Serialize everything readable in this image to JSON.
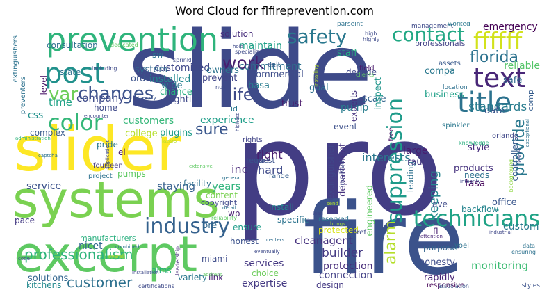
{
  "title": "Word Cloud for flfireprevention.com",
  "chart_data": {
    "type": "wordcloud",
    "title": "Word Cloud for flfireprevention.com",
    "words": [
      {
        "text": "slide",
        "weight": 1.0,
        "color": "#3e4a89"
      },
      {
        "text": "pro",
        "weight": 0.98,
        "color": "#433d84"
      },
      {
        "text": "fire",
        "weight": 0.86,
        "color": "#3b528b"
      },
      {
        "text": "slider",
        "weight": 0.62,
        "color": "#fde725"
      },
      {
        "text": "systems",
        "weight": 0.55,
        "color": "#7ad151"
      },
      {
        "text": "excerpt",
        "weight": 0.53,
        "color": "#5ec962"
      },
      {
        "text": "prevention",
        "weight": 0.36,
        "color": "#2fb47c"
      },
      {
        "text": "post",
        "weight": 0.3,
        "color": "#21918c"
      },
      {
        "text": "title",
        "weight": 0.3,
        "color": "#2c728e"
      },
      {
        "text": "text",
        "weight": 0.27,
        "color": "#482677"
      },
      {
        "text": "color",
        "weight": 0.26,
        "color": "#35b779"
      },
      {
        "text": "ffffff",
        "weight": 0.25,
        "color": "#d2e21b"
      },
      {
        "text": "technicians",
        "weight": 0.24,
        "color": "#20a386"
      },
      {
        "text": "industry",
        "weight": 0.23,
        "color": "#34618d"
      },
      {
        "text": "suppression",
        "weight": 0.23,
        "color": "#1e9b8a"
      },
      {
        "text": "safety",
        "weight": 0.2,
        "color": "#2a788e"
      },
      {
        "text": "contact",
        "weight": 0.2,
        "color": "#22a884"
      },
      {
        "text": "var",
        "weight": 0.19,
        "color": "#6ece58"
      },
      {
        "text": "changes",
        "weight": 0.19,
        "color": "#3b528b"
      },
      {
        "text": "work",
        "weight": 0.18,
        "color": "#481f70"
      },
      {
        "text": "florida",
        "weight": 0.18,
        "color": "#2c728e"
      },
      {
        "text": "provide",
        "weight": 0.18,
        "color": "#2a788e"
      },
      {
        "text": "life",
        "weight": 0.17,
        "color": "#3e4a89"
      },
      {
        "text": "customer",
        "weight": 0.15,
        "color": "#2d708e"
      },
      {
        "text": "alarm",
        "weight": 0.15,
        "color": "#b5de2b"
      },
      {
        "text": "professionalism",
        "weight": 0.14,
        "color": "#2fb47c"
      },
      {
        "text": "sure",
        "weight": 0.14,
        "color": "#39568c"
      },
      {
        "text": "builder",
        "weight": 0.12,
        "color": "#443983"
      },
      {
        "text": "cleanagent",
        "weight": 0.1,
        "color": "#46327e"
      },
      {
        "text": "keeping",
        "weight": 0.1,
        "color": "#25858e"
      },
      {
        "text": "standards",
        "weight": 0.1,
        "color": "#287c8e"
      },
      {
        "text": "interests",
        "weight": 0.09,
        "color": "#2a788e"
      },
      {
        "text": "inc",
        "weight": 0.09,
        "color": "#482878"
      },
      {
        "text": "hard",
        "weight": 0.09,
        "color": "#3e4a89"
      },
      {
        "text": "right",
        "weight": 0.09,
        "color": "#481f70"
      },
      {
        "text": "years",
        "weight": 0.09,
        "color": "#2fb47c"
      },
      {
        "text": "staying",
        "weight": 0.09,
        "color": "#355f8d"
      },
      {
        "text": "nicet",
        "weight": 0.09,
        "color": "#31688e"
      },
      {
        "text": "monitoring",
        "weight": 0.09,
        "color": "#3dbc74"
      },
      {
        "text": "expertise",
        "weight": 0.08,
        "color": "#443983"
      },
      {
        "text": "time",
        "weight": 0.08,
        "color": "#20a386"
      },
      {
        "text": "company",
        "weight": 0.08,
        "color": "#3e4a89"
      },
      {
        "text": "css",
        "weight": 0.08,
        "color": "#21918c"
      },
      {
        "text": "experience",
        "weight": 0.08,
        "color": "#1f9e89"
      },
      {
        "text": "customers",
        "weight": 0.08,
        "color": "#35b779"
      },
      {
        "text": "commitment",
        "weight": 0.08,
        "color": "#2d708e"
      },
      {
        "text": "maintain",
        "weight": 0.08,
        "color": "#1fa188"
      },
      {
        "text": "fasa",
        "weight": 0.08,
        "color": "#46085c"
      },
      {
        "text": "office",
        "weight": 0.08,
        "color": "#39568c"
      },
      {
        "text": "emergency",
        "weight": 0.07,
        "color": "#440154"
      },
      {
        "text": "service",
        "weight": 0.07,
        "color": "#3b528b"
      },
      {
        "text": "customized",
        "weight": 0.07,
        "color": "#3f4889"
      },
      {
        "text": "installed",
        "weight": 0.07,
        "color": "#23898e"
      },
      {
        "text": "system",
        "weight": 0.07,
        "color": "#31688e"
      },
      {
        "text": "reliable",
        "weight": 0.07,
        "color": "#54c568"
      },
      {
        "text": "honesty",
        "weight": 0.07,
        "color": "#3e4c8a"
      },
      {
        "text": "rapidly",
        "weight": 0.07,
        "color": "#482475"
      },
      {
        "text": "connection",
        "weight": 0.07,
        "color": "#424086"
      },
      {
        "text": "protection",
        "weight": 0.07,
        "color": "#472c7a"
      },
      {
        "text": "services",
        "weight": 0.07,
        "color": "#453882"
      },
      {
        "text": "solutions",
        "weight": 0.07,
        "color": "#32658e"
      },
      {
        "text": "engineered",
        "weight": 0.07,
        "color": "#5ec962"
      },
      {
        "text": "extinguisher",
        "weight": 0.07,
        "color": "#404688"
      },
      {
        "text": "department",
        "weight": 0.07,
        "color": "#46337f"
      },
      {
        "text": "pump",
        "weight": 0.07,
        "color": "#287d8e"
      },
      {
        "text": "goal",
        "weight": 0.07,
        "color": "#2d708e"
      },
      {
        "text": "trust",
        "weight": 0.07,
        "color": "#48186a"
      },
      {
        "text": "owners",
        "weight": 0.07,
        "color": "#2c738e"
      },
      {
        "text": "lighting",
        "weight": 0.07,
        "color": "#3e4989"
      },
      {
        "text": "wide",
        "weight": 0.07,
        "color": "#2a788e"
      },
      {
        "text": "plugins",
        "weight": 0.06,
        "color": "#1e9c89"
      },
      {
        "text": "college",
        "weight": 0.06,
        "color": "#b5de2b"
      },
      {
        "text": "custom",
        "weight": 0.07,
        "color": "#2a788e"
      },
      {
        "text": "backflow",
        "weight": 0.06,
        "color": "#25848e"
      },
      {
        "text": "style",
        "weight": 0.06,
        "color": "#472f7d"
      },
      {
        "text": "products",
        "weight": 0.06,
        "color": "#46327e"
      },
      {
        "text": "needs",
        "weight": 0.06,
        "color": "#2c718e"
      },
      {
        "text": "large",
        "weight": 0.06,
        "color": "#481d6f"
      },
      {
        "text": "raul",
        "weight": 0.06,
        "color": "#443a83"
      },
      {
        "text": "compa",
        "weight": 0.06,
        "color": "#2a788e"
      },
      {
        "text": "safe",
        "weight": 0.06,
        "color": "#31688e"
      },
      {
        "text": "business",
        "weight": 0.06,
        "color": "#1fa088"
      },
      {
        "text": "date",
        "weight": 0.06,
        "color": "#39558c"
      },
      {
        "text": "scale",
        "weight": 0.06,
        "color": "#32658e"
      },
      {
        "text": "event",
        "weight": 0.05,
        "color": "#3c4f8a"
      },
      {
        "text": "decade",
        "weight": 0.05,
        "color": "#3f4788"
      },
      {
        "text": "experts",
        "weight": 0.05,
        "color": "#46337f"
      },
      {
        "text": "inspect",
        "weight": 0.05,
        "color": "#1f958b"
      },
      {
        "text": "staff",
        "weight": 0.06,
        "color": "#26ad81"
      },
      {
        "text": "commercial",
        "weight": 0.06,
        "color": "#3d4d8a"
      },
      {
        "text": "prevent",
        "weight": 0.06,
        "color": "#404588"
      },
      {
        "text": "basa",
        "weight": 0.05,
        "color": "#287c8e"
      },
      {
        "text": "solution",
        "weight": 0.05,
        "color": "#472d7b"
      },
      {
        "text": "order",
        "weight": 0.05,
        "color": "#3b528b"
      },
      {
        "text": "chance",
        "weight": 0.06,
        "color": "#28ae80"
      },
      {
        "text": "home",
        "weight": 0.05,
        "color": "#3e4989"
      },
      {
        "text": "state",
        "weight": 0.05,
        "color": "#2c728e"
      },
      {
        "text": "level",
        "weight": 0.05,
        "color": "#481467"
      },
      {
        "text": "consultation",
        "weight": 0.05,
        "color": "#2e6f8e"
      },
      {
        "text": "complex",
        "weight": 0.05,
        "color": "#38598c"
      },
      {
        "text": "pride",
        "weight": 0.05,
        "color": "#2a788e"
      },
      {
        "text": "pumps",
        "weight": 0.05,
        "color": "#5ec962"
      },
      {
        "text": "project",
        "weight": 0.05,
        "color": "#2c718e"
      },
      {
        "text": "fourteen",
        "weight": 0.05,
        "color": "#443983"
      },
      {
        "text": "el",
        "weight": 0.05,
        "color": "#481a6c"
      },
      {
        "text": "facility",
        "weight": 0.05,
        "color": "#2d708e"
      },
      {
        "text": "content",
        "weight": 0.05,
        "color": "#7ad151"
      },
      {
        "text": "copyright",
        "weight": 0.05,
        "color": "#3f4889"
      },
      {
        "text": "pre",
        "weight": 0.05,
        "color": "#31688e"
      },
      {
        "text": "wp",
        "weight": 0.05,
        "color": "#481f70"
      },
      {
        "text": "install",
        "weight": 0.05,
        "color": "#25858e"
      },
      {
        "text": "specific",
        "weight": 0.05,
        "color": "#2c738e"
      },
      {
        "text": "protected",
        "weight": 0.05,
        "color": "#d8e219"
      },
      {
        "text": "ensure",
        "weight": 0.05,
        "color": "#1e9c89"
      },
      {
        "text": "honest",
        "weight": 0.05,
        "color": "#3b518b"
      },
      {
        "text": "choice",
        "weight": 0.05,
        "color": "#6ccd5a"
      },
      {
        "text": "miami",
        "weight": 0.05,
        "color": "#3e4c8a"
      },
      {
        "text": "link",
        "weight": 0.05,
        "color": "#482576"
      },
      {
        "text": "pace",
        "weight": 0.05,
        "color": "#443a83"
      },
      {
        "text": "manufacturers",
        "weight": 0.05,
        "color": "#2ab07f"
      },
      {
        "text": "kitchens",
        "weight": 0.05,
        "color": "#23898e"
      },
      {
        "text": "aims",
        "weight": 0.05,
        "color": "#29af7f"
      },
      {
        "text": "variety",
        "weight": 0.05,
        "color": "#2a778e"
      },
      {
        "text": "purpose",
        "weight": 0.05,
        "color": "#33628d"
      },
      {
        "text": "responsive",
        "weight": 0.04,
        "color": "#440154"
      },
      {
        "text": "design",
        "weight": 0.05,
        "color": "#443983"
      },
      {
        "text": "fl",
        "weight": 0.05,
        "color": "#482071"
      },
      {
        "text": "yoel",
        "weight": 0.04,
        "color": "#2c728e"
      },
      {
        "text": "controllers",
        "weight": 0.05,
        "color": "#365c8d"
      },
      {
        "text": "sw",
        "weight": 0.05,
        "color": "#2c718e"
      },
      {
        "text": "exit",
        "weight": 0.04,
        "color": "#39568c"
      },
      {
        "text": "id",
        "weight": 0.04,
        "color": "#2a778e"
      },
      {
        "text": "comp",
        "weight": 0.04,
        "color": "#365d8d"
      },
      {
        "text": "orlando",
        "weight": 0.04,
        "color": "#3f4788"
      },
      {
        "text": "ave",
        "weight": 0.05,
        "color": "#3e4a89"
      },
      {
        "text": "leading",
        "weight": 0.05,
        "color": "#2d708e"
      },
      {
        "text": "spinkler",
        "weight": 0.04,
        "color": "#2a788e"
      },
      {
        "text": "free",
        "weight": 0.04,
        "color": "#471164"
      },
      {
        "text": "team",
        "weight": 0.04,
        "color": "#404588"
      },
      {
        "text": "rights",
        "weight": 0.04,
        "color": "#414487"
      },
      {
        "text": "request",
        "weight": 0.04,
        "color": "#3a538b"
      },
      {
        "text": "range",
        "weight": 0.04,
        "color": "#355e8d"
      },
      {
        "text": "reserved",
        "weight": 0.04,
        "color": "#2c728e"
      },
      {
        "text": "involved",
        "weight": 0.04,
        "color": "#3e4989"
      },
      {
        "text": "management",
        "weight": 0.04,
        "color": "#3e4a89"
      },
      {
        "text": "worked",
        "weight": 0.04,
        "color": "#2a788e"
      },
      {
        "text": "professionals",
        "weight": 0.05,
        "color": "#424186"
      },
      {
        "text": "parseint",
        "weight": 0.04,
        "color": "#2c728e"
      },
      {
        "text": "field",
        "weight": 0.04,
        "color": "#481a6c"
      },
      {
        "text": "clients",
        "weight": 0.03,
        "color": "#5ec962"
      },
      {
        "text": "assets",
        "weight": 0.04,
        "color": "#38598c"
      },
      {
        "text": "location",
        "weight": 0.04,
        "color": "#2d708e"
      },
      {
        "text": "knowledge",
        "weight": 0.03,
        "color": "#29af7f"
      },
      {
        "text": "integrity",
        "weight": 0.03,
        "color": "#3e4989"
      },
      {
        "text": "background",
        "weight": 0.03,
        "color": "#8fd744"
      },
      {
        "text": "industrial",
        "weight": 0.03,
        "color": "#3f4788"
      },
      {
        "text": "attention",
        "weight": 0.03,
        "color": "#482576"
      },
      {
        "text": "brings",
        "weight": 0.03,
        "color": "#a2da37"
      },
      {
        "text": "href",
        "weight": 0.04,
        "color": "#3e4989"
      },
      {
        "text": "centers",
        "weight": 0.03,
        "color": "#2f6c8e"
      },
      {
        "text": "eventually",
        "weight": 0.03,
        "color": "#3e4a89"
      },
      {
        "text": "address",
        "weight": 0.03,
        "color": "#5ec962"
      },
      {
        "text": "leadership",
        "weight": 0.03,
        "color": "#472d7b"
      },
      {
        "text": "installation",
        "weight": 0.03,
        "color": "#3e4989"
      },
      {
        "text": "certifications",
        "weight": 0.03,
        "color": "#3e4a89"
      },
      {
        "text": "association",
        "weight": 0.03,
        "color": "#3b528b"
      },
      {
        "text": "styles",
        "weight": 0.04,
        "color": "#3b528b"
      },
      {
        "text": "data",
        "weight": 0.03,
        "color": "#2c728e"
      },
      {
        "text": "ensuring",
        "weight": 0.03,
        "color": "#2c718e"
      },
      {
        "text": "exceptional",
        "weight": 0.03,
        "color": "#2c728e"
      },
      {
        "text": "leader",
        "weight": 0.03,
        "color": "#3e4989"
      },
      {
        "text": "extinguishers",
        "weight": 0.04,
        "color": "#2c728e"
      },
      {
        "text": "preventers",
        "weight": 0.04,
        "color": "#2c718e"
      },
      {
        "text": "including",
        "weight": 0.03,
        "color": "#3e4989"
      },
      {
        "text": "dedicated",
        "weight": 0.03,
        "color": "#5ec962"
      },
      {
        "text": "encounter",
        "weight": 0.03,
        "color": "#3e4989"
      },
      {
        "text": "applications",
        "weight": 0.03,
        "color": "#3e4a89"
      },
      {
        "text": "themify",
        "weight": 0.03,
        "color": "#3b528b"
      },
      {
        "text": "lazaro",
        "weight": 0.03,
        "color": "#b5de2b"
      },
      {
        "text": "sprinkler",
        "weight": 0.03,
        "color": "#3e4a89"
      },
      {
        "text": "captcha",
        "weight": 0.03,
        "color": "#2c728e"
      },
      {
        "text": "administration",
        "weight": 0.03,
        "color": "#2fb47c"
      },
      {
        "text": "extensive",
        "weight": 0.03,
        "color": "#5ec962"
      },
      {
        "text": "general",
        "weight": 0.03,
        "color": "#2c728e"
      },
      {
        "text": "detail",
        "weight": 0.03,
        "color": "#2c728e"
      },
      {
        "text": "reliability",
        "weight": 0.03,
        "color": "#5ec962"
      },
      {
        "text": "combined",
        "weight": 0.03,
        "color": "#2c728e"
      },
      {
        "text": "code",
        "weight": 0.03,
        "color": "#3e4a89"
      },
      {
        "text": "overall",
        "weight": 0.03,
        "color": "#b5de2b"
      },
      {
        "text": "specialize",
        "weight": 0.03,
        "color": "#3e4a89"
      },
      {
        "text": "hold",
        "weight": 0.03,
        "color": "#3e4a89"
      },
      {
        "text": "high",
        "weight": 0.03,
        "color": "#3e4a89"
      },
      {
        "text": "highly",
        "weight": 0.03,
        "color": "#3e4a89"
      },
      {
        "text": "null",
        "weight": 0.03,
        "color": "#3e4a89"
      },
      {
        "text": "highest",
        "weight": 0.03,
        "color": "#3e4989"
      },
      {
        "text": "installing",
        "weight": 0.03,
        "color": "#b5de2b"
      },
      {
        "text": "send",
        "weight": 0.03,
        "color": "#b5de2b"
      },
      {
        "text": "lead",
        "weight": 0.03,
        "color": "#3e4989"
      }
    ]
  }
}
